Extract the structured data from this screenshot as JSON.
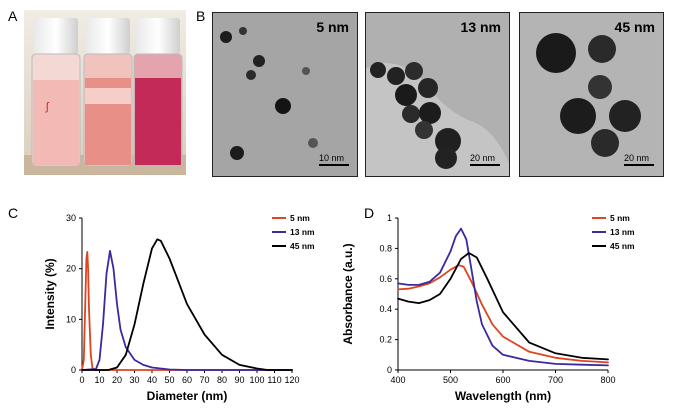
{
  "panels": {
    "a": "A",
    "b": "B",
    "c": "C",
    "d": "D"
  },
  "tem_images": [
    {
      "size_label": "5 nm",
      "scale_label": "10 nm"
    },
    {
      "size_label": "13 nm",
      "scale_label": "20 nm"
    },
    {
      "size_label": "45 nm",
      "scale_label": "20 nm"
    }
  ],
  "colors": {
    "5nm": "#e0431f",
    "13nm": "#3a2aa0",
    "45nm": "#000000"
  },
  "chart_data": [
    {
      "type": "line",
      "xlabel": "Diameter (nm)",
      "ylabel": "Intensity (%)",
      "xlim": [
        0,
        120
      ],
      "ylim": [
        0,
        30
      ],
      "x_ticks": [
        0,
        10,
        20,
        30,
        40,
        50,
        60,
        70,
        80,
        90,
        100,
        110,
        120
      ],
      "y_ticks": [
        0,
        10,
        20,
        30
      ],
      "legend_position": "top-right",
      "series": [
        {
          "name": "5 nm",
          "x": [
            0,
            1,
            2,
            2.5,
            3,
            3.5,
            4,
            5,
            6,
            8,
            120
          ],
          "y": [
            0,
            2,
            15,
            22,
            23.3,
            20,
            12,
            3,
            0.3,
            0,
            0
          ]
        },
        {
          "name": "13 nm",
          "x": [
            0,
            8,
            10,
            12,
            14,
            16,
            18,
            20,
            22,
            25,
            30,
            35,
            40,
            50,
            60,
            70,
            120
          ],
          "y": [
            0,
            0.2,
            2,
            9,
            19,
            23.5,
            20,
            13,
            8,
            4.5,
            2,
            1,
            0.5,
            0.1,
            0,
            0,
            0
          ]
        },
        {
          "name": "45 nm",
          "x": [
            0,
            15,
            20,
            25,
            30,
            35,
            40,
            43,
            45,
            50,
            55,
            60,
            70,
            80,
            90,
            100,
            106,
            120
          ],
          "y": [
            0,
            0,
            0.5,
            3,
            9,
            17,
            24,
            25.8,
            25.5,
            22,
            17.5,
            13,
            7,
            3,
            1,
            0.3,
            0,
            0
          ]
        }
      ]
    },
    {
      "type": "line",
      "xlabel": "Wavelength (nm)",
      "ylabel": "Absorbance (a.u.)",
      "xlim": [
        400,
        800
      ],
      "ylim": [
        0,
        1
      ],
      "x_ticks": [
        400,
        500,
        600,
        700,
        800
      ],
      "y_ticks": [
        0,
        0.2,
        0.4,
        0.6,
        0.8,
        1
      ],
      "y_tick_labels": [
        "0",
        "0.2",
        "0.4",
        "0.6",
        "0.8",
        "1"
      ],
      "legend_position": "top-right",
      "series": [
        {
          "name": "5 nm",
          "x": [
            400,
            420,
            440,
            460,
            480,
            500,
            515,
            525,
            540,
            560,
            580,
            600,
            650,
            700,
            750,
            800
          ],
          "y": [
            0.53,
            0.535,
            0.55,
            0.57,
            0.61,
            0.66,
            0.69,
            0.68,
            0.58,
            0.43,
            0.3,
            0.22,
            0.12,
            0.08,
            0.06,
            0.05
          ]
        },
        {
          "name": "13 nm",
          "x": [
            400,
            420,
            440,
            460,
            480,
            500,
            510,
            520,
            530,
            540,
            550,
            560,
            580,
            600,
            650,
            700,
            750,
            800
          ],
          "y": [
            0.57,
            0.56,
            0.56,
            0.58,
            0.64,
            0.78,
            0.88,
            0.93,
            0.86,
            0.66,
            0.45,
            0.3,
            0.16,
            0.1,
            0.06,
            0.04,
            0.035,
            0.03
          ]
        },
        {
          "name": "45 nm",
          "x": [
            400,
            420,
            440,
            460,
            480,
            500,
            520,
            535,
            550,
            570,
            600,
            650,
            700,
            750,
            800
          ],
          "y": [
            0.47,
            0.45,
            0.44,
            0.46,
            0.5,
            0.6,
            0.73,
            0.77,
            0.74,
            0.6,
            0.38,
            0.18,
            0.11,
            0.08,
            0.07
          ]
        }
      ]
    }
  ]
}
